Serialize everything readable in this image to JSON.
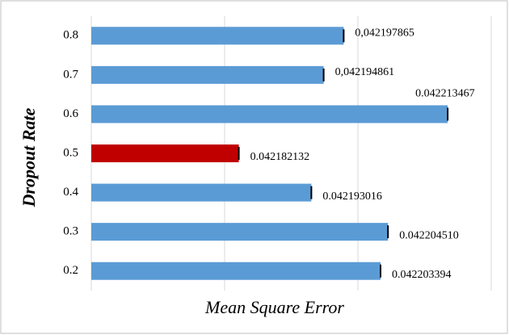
{
  "chart_data": {
    "type": "barh",
    "categories": [
      "0.2",
      "0.3",
      "0.4",
      "0.5",
      "0.6",
      "0.7",
      "0.8"
    ],
    "values": [
      0.042203394,
      0.04220451,
      0.042193016,
      0.042182132,
      0.042213467,
      0.042194861,
      0.042197865
    ],
    "value_labels": [
      "0.042203394",
      "0.042204510",
      "0.042193016",
      "0.042182132",
      "0.042213467",
      "0,042194861",
      "0,042197865"
    ],
    "colors": [
      "#5b9bd5",
      "#5b9bd5",
      "#5b9bd5",
      "#c00000",
      "#5b9bd5",
      "#5b9bd5",
      "#5b9bd5"
    ],
    "xlabel": "Mean Square Error",
    "ylabel": "Dropout Rate",
    "xlim": [
      0.04216,
      0.04222
    ],
    "xticks": [
      0.04216,
      0.04218,
      0.0422,
      0.04222
    ],
    "grid": true
  }
}
